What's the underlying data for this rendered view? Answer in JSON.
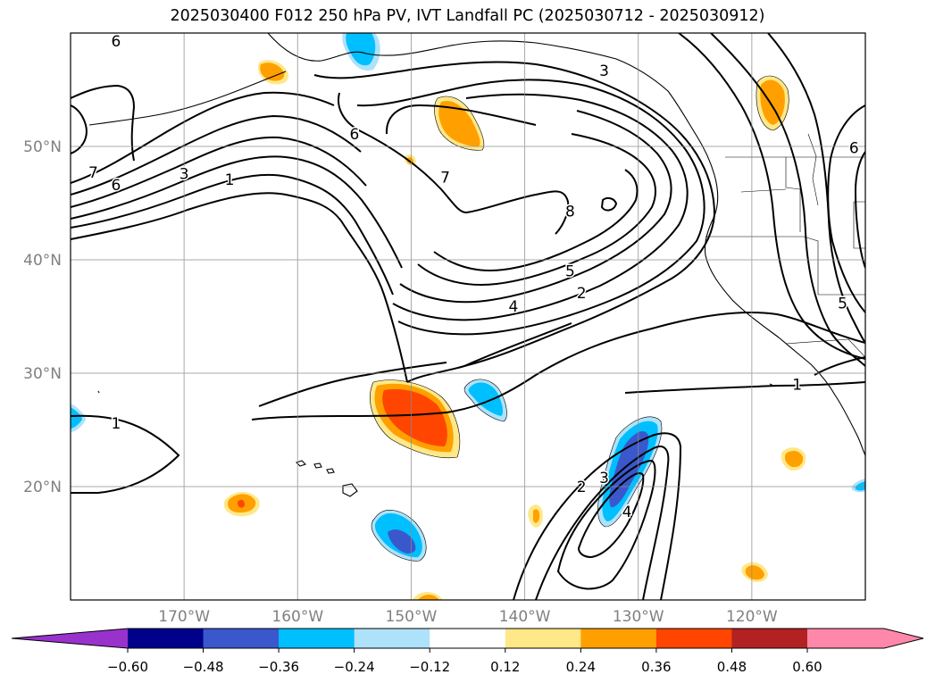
{
  "title": "2025030400 F012 250 hPa PV, IVT Landfall PC (2025030712 - 2025030912)",
  "map": {
    "projection": "PlateCarree",
    "lon_range": [
      -180,
      -110
    ],
    "lat_range": [
      10,
      60
    ],
    "lat_ticks": [
      {
        "value": 20,
        "label": "20°N"
      },
      {
        "value": 30,
        "label": "30°N"
      },
      {
        "value": 40,
        "label": "40°N"
      },
      {
        "value": 50,
        "label": "50°N"
      }
    ],
    "lon_ticks": [
      {
        "value": -170,
        "label": "170°W"
      },
      {
        "value": -160,
        "label": "160°W"
      },
      {
        "value": -150,
        "label": "150°W"
      },
      {
        "value": -140,
        "label": "140°W"
      },
      {
        "value": -130,
        "label": "130°W"
      },
      {
        "value": -120,
        "label": "120°W"
      }
    ],
    "tick_label_color": "#808080",
    "gridlines": true,
    "contour_labels": [
      {
        "text": "6",
        "lon": -176,
        "lat": 59.3
      },
      {
        "text": "7",
        "lon": -178,
        "lat": 47.7
      },
      {
        "text": "6",
        "lon": -176,
        "lat": 46.6
      },
      {
        "text": "3",
        "lon": -170,
        "lat": 47.6
      },
      {
        "text": "1",
        "lon": -166,
        "lat": 47.1
      },
      {
        "text": "6",
        "lon": -155,
        "lat": 51.1
      },
      {
        "text": "7",
        "lon": -147,
        "lat": 47.3
      },
      {
        "text": "8",
        "lon": -136,
        "lat": 44.3
      },
      {
        "text": "5",
        "lon": -136,
        "lat": 39.0
      },
      {
        "text": "4",
        "lon": -141,
        "lat": 35.9
      },
      {
        "text": "2",
        "lon": -135,
        "lat": 37.1
      },
      {
        "text": "3",
        "lon": -133,
        "lat": 56.7
      },
      {
        "text": "6",
        "lon": -111,
        "lat": 49.9
      },
      {
        "text": "5",
        "lon": -112,
        "lat": 36.2
      },
      {
        "text": "1",
        "lon": -176,
        "lat": 25.6
      },
      {
        "text": "1",
        "lon": -116,
        "lat": 29.0
      },
      {
        "text": "2",
        "lon": -135,
        "lat": 20.0
      },
      {
        "text": "3",
        "lon": -133,
        "lat": 20.8
      },
      {
        "text": "4",
        "lon": -131,
        "lat": 17.8
      }
    ],
    "colors": {
      "positive": [
        "#ffe888",
        "#ffa000",
        "#ff4500"
      ],
      "negative": [
        "#aee2fa",
        "#00bfff",
        "#3a58cc"
      ]
    }
  },
  "colorbar": {
    "ticks": [
      "−0.60",
      "−0.48",
      "−0.36",
      "−0.24",
      "−0.12",
      "0.12",
      "0.24",
      "0.36",
      "0.48",
      "0.60"
    ],
    "colors": [
      "#9932cc",
      "#00008b",
      "#3a58cc",
      "#00bfff",
      "#aee2fa",
      "#ffffff",
      "#ffe888",
      "#ffa000",
      "#ff4500",
      "#b22222",
      "#ff88aa",
      "#ff88aa"
    ]
  }
}
